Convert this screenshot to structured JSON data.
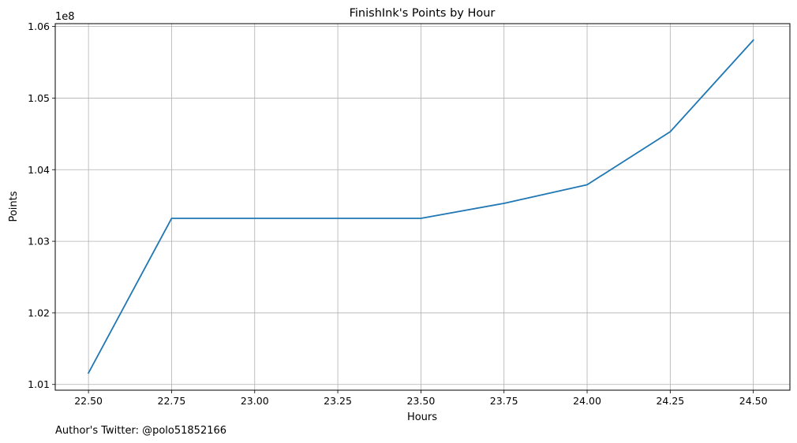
{
  "footer": {
    "credit": "Author's Twitter: @polo51852166"
  },
  "chart_data": {
    "type": "line",
    "title": "FinishInk's Points by Hour",
    "xlabel": "Hours",
    "ylabel": "Points",
    "y_offset_label": "1e8",
    "xlim": [
      22.4,
      24.61
    ],
    "ylim": [
      100920000,
      106040000
    ],
    "grid": true,
    "x_ticks": [
      22.5,
      22.75,
      23.0,
      23.25,
      23.5,
      23.75,
      24.0,
      24.25,
      24.5
    ],
    "x_tick_labels": [
      "22.50",
      "22.75",
      "23.00",
      "23.25",
      "23.50",
      "23.75",
      "24.00",
      "24.25",
      "24.50"
    ],
    "y_ticks": [
      101000000,
      102000000,
      103000000,
      104000000,
      105000000,
      106000000
    ],
    "y_tick_labels": [
      "1.01",
      "1.02",
      "1.03",
      "1.04",
      "1.05",
      "1.06"
    ],
    "series": [
      {
        "color": "#1f77b4",
        "x": [
          22.5,
          22.75,
          23.0,
          23.25,
          23.5,
          23.75,
          24.0,
          24.25,
          24.5
        ],
        "y": [
          101160000,
          103320000,
          103320000,
          103320000,
          103320000,
          103530000,
          103790000,
          104530000,
          105810000
        ]
      }
    ]
  }
}
